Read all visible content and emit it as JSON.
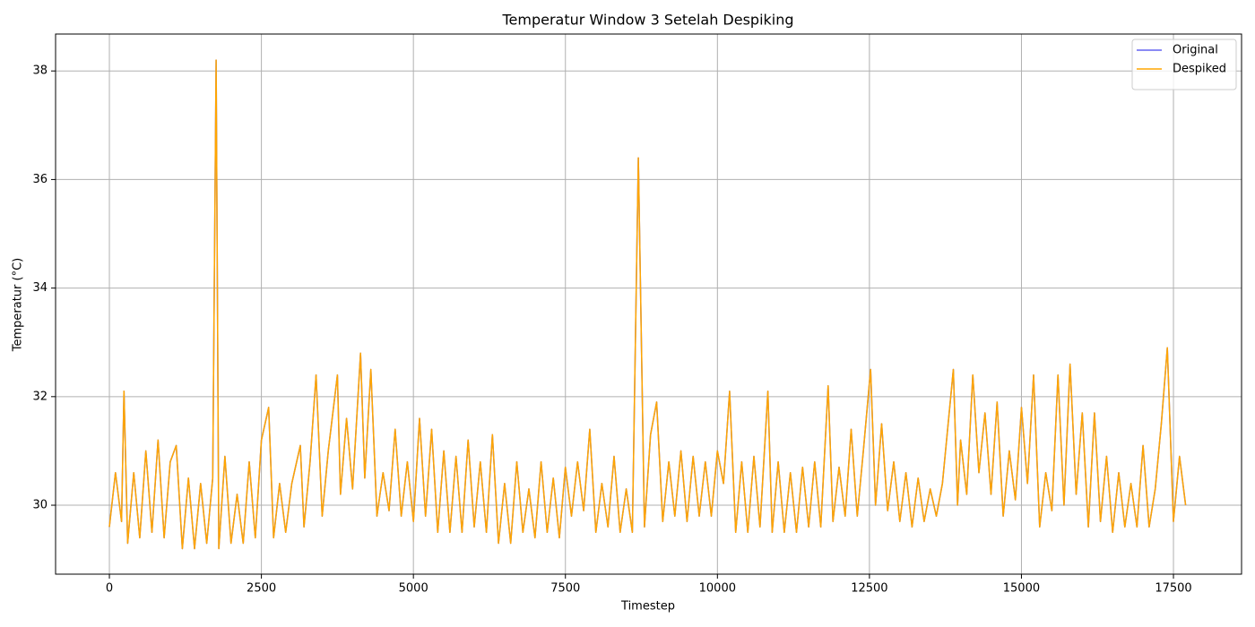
{
  "chart_data": {
    "type": "line",
    "title": "Temperatur Window 3 Setelah Despiking",
    "xlabel": "Timestep",
    "ylabel": "Temperatur (°C)",
    "xlim": [
      -885,
      18620
    ],
    "ylim": [
      28.73,
      38.68
    ],
    "xticks": [
      0,
      2500,
      5000,
      7500,
      10000,
      12500,
      15000,
      17500
    ],
    "yticks": [
      30,
      32,
      34,
      36,
      38
    ],
    "grid": true,
    "legend": "upper right",
    "x": [
      0,
      100,
      200,
      240,
      300,
      400,
      500,
      600,
      700,
      800,
      900,
      1000,
      1100,
      1200,
      1300,
      1400,
      1500,
      1600,
      1700,
      1755,
      1800,
      1900,
      2000,
      2100,
      2200,
      2300,
      2400,
      2500,
      2620,
      2700,
      2800,
      2900,
      3000,
      3140,
      3200,
      3300,
      3400,
      3500,
      3600,
      3750,
      3800,
      3900,
      4000,
      4130,
      4200,
      4300,
      4400,
      4500,
      4600,
      4700,
      4800,
      4900,
      5000,
      5100,
      5200,
      5300,
      5400,
      5500,
      5600,
      5700,
      5800,
      5900,
      6000,
      6100,
      6200,
      6300,
      6400,
      6500,
      6600,
      6700,
      6800,
      6900,
      7000,
      7100,
      7200,
      7300,
      7400,
      7500,
      7600,
      7700,
      7800,
      7900,
      8000,
      8100,
      8200,
      8300,
      8400,
      8500,
      8600,
      8700,
      8800,
      8900,
      9000,
      9100,
      9200,
      9300,
      9400,
      9500,
      9600,
      9700,
      9800,
      9900,
      10000,
      10100,
      10200,
      10300,
      10400,
      10500,
      10600,
      10700,
      10830,
      10900,
      11000,
      11100,
      11200,
      11300,
      11400,
      11500,
      11600,
      11700,
      11820,
      11900,
      12000,
      12100,
      12200,
      12300,
      12400,
      12520,
      12600,
      12700,
      12800,
      12900,
      13000,
      13100,
      13200,
      13300,
      13400,
      13500,
      13600,
      13700,
      13880,
      13950,
      14000,
      14100,
      14200,
      14300,
      14400,
      14500,
      14600,
      14700,
      14800,
      14900,
      15000,
      15100,
      15200,
      15300,
      15400,
      15500,
      15600,
      15700,
      15800,
      15900,
      16000,
      16100,
      16200,
      16300,
      16400,
      16500,
      16600,
      16700,
      16800,
      16900,
      17000,
      17100,
      17200,
      17300,
      17400,
      17500,
      17600,
      17700
    ],
    "series": [
      {
        "name": "Original",
        "color": "#6464f0",
        "values": [
          29.6,
          30.6,
          29.7,
          32.1,
          29.3,
          30.6,
          29.4,
          31.0,
          29.5,
          31.2,
          29.4,
          30.8,
          31.1,
          29.2,
          30.5,
          29.2,
          30.4,
          29.3,
          30.5,
          38.2,
          29.2,
          30.9,
          29.3,
          30.2,
          29.3,
          30.8,
          29.4,
          31.2,
          31.8,
          29.4,
          30.4,
          29.5,
          30.4,
          31.1,
          29.6,
          30.8,
          32.4,
          29.8,
          31.0,
          32.4,
          30.2,
          31.6,
          30.3,
          32.8,
          30.5,
          32.5,
          29.8,
          30.6,
          29.9,
          31.4,
          29.8,
          30.8,
          29.7,
          31.6,
          29.8,
          31.4,
          29.5,
          31.0,
          29.5,
          30.9,
          29.5,
          31.2,
          29.6,
          30.8,
          29.5,
          31.3,
          29.3,
          30.4,
          29.3,
          30.8,
          29.5,
          30.3,
          29.4,
          30.8,
          29.5,
          30.5,
          29.4,
          30.7,
          29.8,
          30.8,
          29.9,
          31.4,
          29.5,
          30.4,
          29.6,
          30.9,
          29.5,
          30.3,
          29.5,
          36.4,
          29.6,
          31.3,
          31.9,
          29.7,
          30.8,
          29.8,
          31.0,
          29.7,
          30.9,
          29.8,
          30.8,
          29.8,
          31.0,
          30.4,
          32.1,
          29.5,
          30.8,
          29.5,
          30.9,
          29.6,
          32.1,
          29.5,
          30.8,
          29.5,
          30.6,
          29.5,
          30.7,
          29.6,
          30.8,
          29.6,
          32.2,
          29.7,
          30.7,
          29.8,
          31.4,
          29.8,
          31.0,
          32.5,
          30.0,
          31.5,
          29.9,
          30.8,
          29.7,
          30.6,
          29.6,
          30.5,
          29.7,
          30.3,
          29.8,
          30.4,
          32.5,
          30.0,
          31.2,
          30.2,
          32.4,
          30.6,
          31.7,
          30.2,
          31.9,
          29.8,
          31.0,
          30.1,
          31.8,
          30.4,
          32.4,
          29.6,
          30.6,
          29.9,
          32.4,
          30.0,
          32.6,
          30.2,
          31.7,
          29.6,
          31.7,
          29.7,
          30.9,
          29.5,
          30.6,
          29.6,
          30.4,
          29.6,
          31.1,
          29.6,
          30.3,
          31.5,
          32.9,
          29.7,
          30.9,
          30.0
        ]
      },
      {
        "name": "Despiked",
        "color": "#ffa500",
        "values": [
          29.6,
          30.6,
          29.7,
          32.1,
          29.3,
          30.6,
          29.4,
          31.0,
          29.5,
          31.2,
          29.4,
          30.8,
          31.1,
          29.2,
          30.5,
          29.2,
          30.4,
          29.3,
          30.5,
          38.2,
          29.2,
          30.9,
          29.3,
          30.2,
          29.3,
          30.8,
          29.4,
          31.2,
          31.8,
          29.4,
          30.4,
          29.5,
          30.4,
          31.1,
          29.6,
          30.8,
          32.4,
          29.8,
          31.0,
          32.4,
          30.2,
          31.6,
          30.3,
          32.8,
          30.5,
          32.5,
          29.8,
          30.6,
          29.9,
          31.4,
          29.8,
          30.8,
          29.7,
          31.6,
          29.8,
          31.4,
          29.5,
          31.0,
          29.5,
          30.9,
          29.5,
          31.2,
          29.6,
          30.8,
          29.5,
          31.3,
          29.3,
          30.4,
          29.3,
          30.8,
          29.5,
          30.3,
          29.4,
          30.8,
          29.5,
          30.5,
          29.4,
          30.7,
          29.8,
          30.8,
          29.9,
          31.4,
          29.5,
          30.4,
          29.6,
          30.9,
          29.5,
          30.3,
          29.5,
          36.4,
          29.6,
          31.3,
          31.9,
          29.7,
          30.8,
          29.8,
          31.0,
          29.7,
          30.9,
          29.8,
          30.8,
          29.8,
          31.0,
          30.4,
          32.1,
          29.5,
          30.8,
          29.5,
          30.9,
          29.6,
          32.1,
          29.5,
          30.8,
          29.5,
          30.6,
          29.5,
          30.7,
          29.6,
          30.8,
          29.6,
          32.2,
          29.7,
          30.7,
          29.8,
          31.4,
          29.8,
          31.0,
          32.5,
          30.0,
          31.5,
          29.9,
          30.8,
          29.7,
          30.6,
          29.6,
          30.5,
          29.7,
          30.3,
          29.8,
          30.4,
          32.5,
          30.0,
          31.2,
          30.2,
          32.4,
          30.6,
          31.7,
          30.2,
          31.9,
          29.8,
          31.0,
          30.1,
          31.8,
          30.4,
          32.4,
          29.6,
          30.6,
          29.9,
          32.4,
          30.0,
          32.6,
          30.2,
          31.7,
          29.6,
          31.7,
          29.7,
          30.9,
          29.5,
          30.6,
          29.6,
          30.4,
          29.6,
          31.1,
          29.6,
          30.3,
          31.5,
          32.9,
          29.7,
          30.9,
          30.0
        ]
      }
    ]
  }
}
